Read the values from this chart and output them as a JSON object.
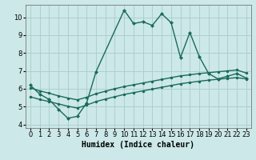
{
  "xlabel": "Humidex (Indice chaleur)",
  "bg_color": "#cce8e8",
  "grid_color": "#aacccc",
  "line_color": "#1a6b5a",
  "xlim": [
    -0.5,
    23.5
  ],
  "ylim": [
    3.8,
    10.7
  ],
  "yticks": [
    4,
    5,
    6,
    7,
    8,
    9,
    10
  ],
  "xticks": [
    0,
    1,
    2,
    3,
    4,
    5,
    6,
    7,
    8,
    9,
    10,
    11,
    12,
    13,
    14,
    15,
    16,
    17,
    18,
    19,
    20,
    21,
    22,
    23
  ],
  "main_x": [
    0,
    1,
    2,
    3,
    4,
    5,
    6,
    7,
    10,
    11,
    12,
    13,
    14,
    15,
    16,
    17,
    18,
    19,
    20,
    21,
    22,
    23
  ],
  "main_y": [
    6.2,
    5.7,
    5.4,
    4.85,
    4.35,
    4.45,
    5.2,
    6.95,
    10.4,
    9.65,
    9.75,
    9.55,
    10.2,
    9.7,
    7.75,
    9.15,
    7.8,
    6.85,
    6.55,
    6.7,
    6.85,
    6.6
  ],
  "lower_x": [
    0,
    1,
    2,
    3,
    4,
    5,
    6,
    7,
    8,
    9,
    10,
    11,
    12,
    13,
    14,
    15,
    16,
    17,
    18,
    19,
    20,
    21,
    22,
    23
  ],
  "lower_y": [
    5.55,
    5.4,
    5.28,
    5.15,
    5.02,
    4.92,
    5.08,
    5.28,
    5.42,
    5.55,
    5.68,
    5.78,
    5.88,
    5.98,
    6.08,
    6.18,
    6.28,
    6.35,
    6.42,
    6.48,
    6.53,
    6.58,
    6.62,
    6.55
  ],
  "upper_x": [
    0,
    1,
    2,
    3,
    4,
    5,
    6,
    7,
    8,
    9,
    10,
    11,
    12,
    13,
    14,
    15,
    16,
    17,
    18,
    19,
    20,
    21,
    22,
    23
  ],
  "upper_y": [
    6.05,
    5.88,
    5.75,
    5.6,
    5.48,
    5.38,
    5.52,
    5.72,
    5.86,
    6.0,
    6.12,
    6.22,
    6.32,
    6.42,
    6.52,
    6.62,
    6.72,
    6.78,
    6.85,
    6.9,
    6.95,
    7.0,
    7.05,
    6.88
  ],
  "marker_size": 2.5,
  "linewidth": 1.0,
  "tick_fontsize": 6,
  "label_fontsize": 7
}
